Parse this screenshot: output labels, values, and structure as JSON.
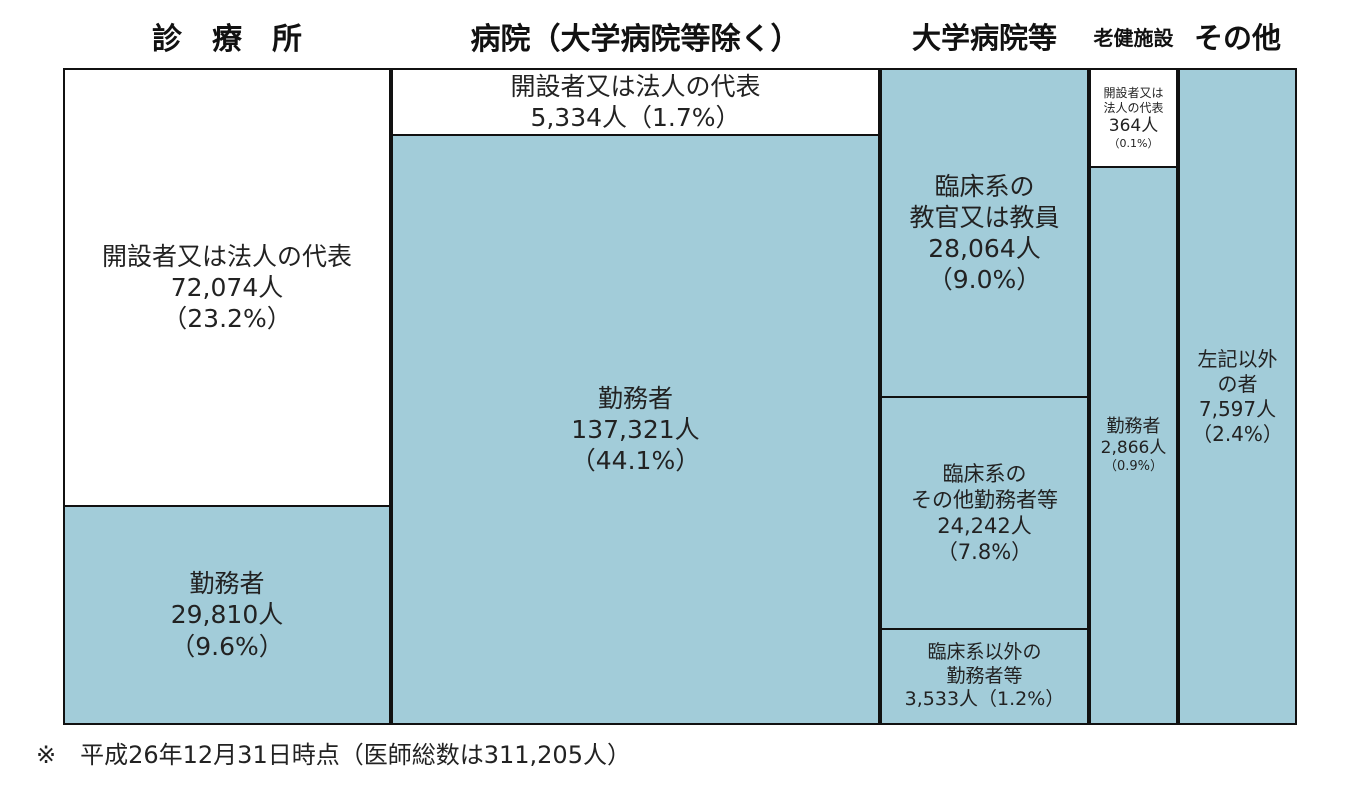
{
  "chart_data": {
    "type": "treemap",
    "columns": [
      {
        "header": "診　療　所",
        "cells": [
          {
            "label": "開設者又は法人の代表",
            "count": "72,074人",
            "pct": "（23.2%）",
            "value": 72074,
            "percent": 23.2,
            "fill": "#ffffff"
          },
          {
            "label": "勤務者",
            "count": "29,810人",
            "pct": "（9.6%）",
            "value": 29810,
            "percent": 9.6,
            "fill": "#a2ccd9"
          }
        ]
      },
      {
        "header": "病院（大学病院等除く）",
        "cells": [
          {
            "label": "開設者又は法人の代表",
            "count": "5,334人（1.7%）",
            "pct": "",
            "value": 5334,
            "percent": 1.7,
            "fill": "#ffffff"
          },
          {
            "label": "勤務者",
            "count": "137,321人",
            "pct": "（44.1%）",
            "value": 137321,
            "percent": 44.1,
            "fill": "#a2ccd9"
          }
        ]
      },
      {
        "header": "大学病院等",
        "cells": [
          {
            "label": "臨床系の\n教官又は教員",
            "count": "28,064人",
            "pct": "（9.0%）",
            "value": 28064,
            "percent": 9.0,
            "fill": "#a2ccd9"
          },
          {
            "label": "臨床系の\nその他勤務者等",
            "count": "24,242人",
            "pct": "（7.8%）",
            "value": 24242,
            "percent": 7.8,
            "fill": "#a2ccd9"
          },
          {
            "label": "臨床系以外の\n勤務者等",
            "count": "3,533人（1.2%）",
            "pct": "",
            "value": 3533,
            "percent": 1.2,
            "fill": "#a2ccd9"
          }
        ]
      },
      {
        "header": "老健施設",
        "cells": [
          {
            "label": "開設者又は\n法人の代表",
            "count": "364人",
            "pct": "（0.1%）",
            "value": 364,
            "percent": 0.1,
            "fill": "#ffffff"
          },
          {
            "label": "勤務者",
            "count": "2,866人",
            "pct": "（0.9%）",
            "value": 2866,
            "percent": 0.9,
            "fill": "#a2ccd9"
          }
        ]
      },
      {
        "header": "その他",
        "cells": [
          {
            "label": "左記以外\nの者",
            "count": "7,597人",
            "pct": "（2.4%）",
            "value": 7597,
            "percent": 2.4,
            "fill": "#a2ccd9"
          }
        ]
      }
    ]
  },
  "footnote": "※　平成26年12月31日時点（医師総数は311,205人）"
}
